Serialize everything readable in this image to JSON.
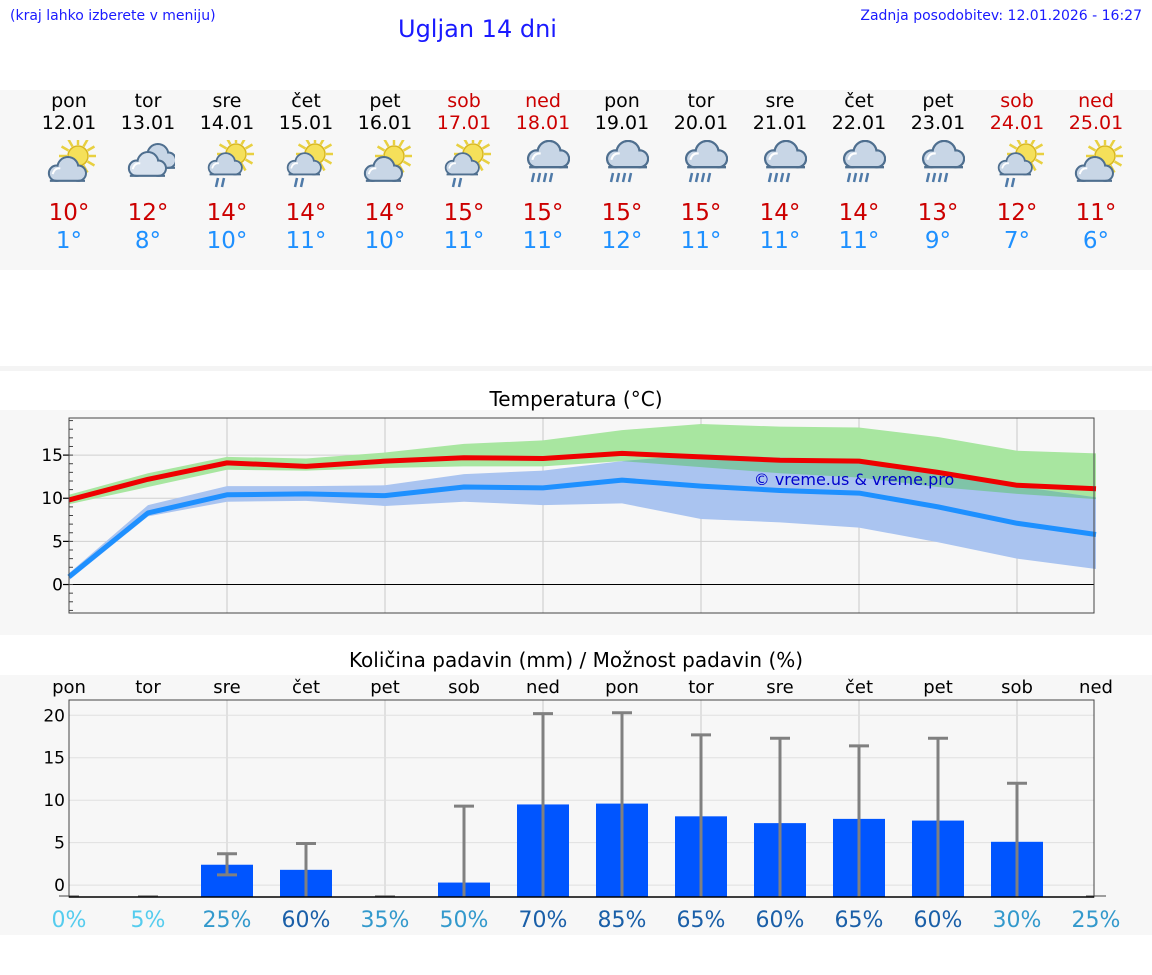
{
  "header": {
    "hint": "(kraj lahko izberete v meniju)",
    "title": "Ugljan 14 dni",
    "updated": "Zadnja posodobitev: 12.01.2026 - 16:27"
  },
  "days": [
    {
      "name": "pon",
      "date": "12.01",
      "weekend": false,
      "icon": "partly-cloudy-icon",
      "max": "10°",
      "min": "1°"
    },
    {
      "name": "tor",
      "date": "13.01",
      "weekend": false,
      "icon": "cloudy-icon",
      "max": "12°",
      "min": "8°"
    },
    {
      "name": "sre",
      "date": "14.01",
      "weekend": false,
      "icon": "sun-cloud-showers-icon",
      "max": "14°",
      "min": "10°"
    },
    {
      "name": "čet",
      "date": "15.01",
      "weekend": false,
      "icon": "sun-cloud-showers-icon",
      "max": "14°",
      "min": "11°"
    },
    {
      "name": "pet",
      "date": "16.01",
      "weekend": false,
      "icon": "partly-cloudy-icon",
      "max": "14°",
      "min": "10°"
    },
    {
      "name": "sob",
      "date": "17.01",
      "weekend": true,
      "icon": "sun-cloud-showers-icon",
      "max": "15°",
      "min": "11°"
    },
    {
      "name": "ned",
      "date": "18.01",
      "weekend": true,
      "icon": "rain-icon",
      "max": "15°",
      "min": "11°"
    },
    {
      "name": "pon",
      "date": "19.01",
      "weekend": false,
      "icon": "rain-icon",
      "max": "15°",
      "min": "12°"
    },
    {
      "name": "tor",
      "date": "20.01",
      "weekend": false,
      "icon": "rain-icon",
      "max": "15°",
      "min": "11°"
    },
    {
      "name": "sre",
      "date": "21.01",
      "weekend": false,
      "icon": "rain-icon",
      "max": "14°",
      "min": "11°"
    },
    {
      "name": "čet",
      "date": "22.01",
      "weekend": false,
      "icon": "rain-icon",
      "max": "14°",
      "min": "11°"
    },
    {
      "name": "pet",
      "date": "23.01",
      "weekend": false,
      "icon": "rain-icon",
      "max": "13°",
      "min": "9°"
    },
    {
      "name": "sob",
      "date": "24.01",
      "weekend": true,
      "icon": "sun-cloud-showers-icon",
      "max": "12°",
      "min": "7°"
    },
    {
      "name": "ned",
      "date": "25.01",
      "weekend": true,
      "icon": "partly-cloudy-icon",
      "max": "11°",
      "min": "6°"
    }
  ],
  "colors": {
    "max_line": "#ee0000",
    "min_line": "#1e90ff",
    "max_band": "#a8e6a0",
    "min_band": "#aac4f0",
    "overlap_band": "#7fc4a8",
    "bar": "#0055ff",
    "error": "#808080",
    "watermark": "#0000cc",
    "prob_light": "#55ccee",
    "prob_mid": "#3399cc",
    "prob_dark": "#1a5fa8"
  },
  "chart_data": [
    {
      "type": "line",
      "title": "Temperatura (°C)",
      "watermark": "© vreme.us & vreme.pro",
      "ylim": [
        -3.3,
        19.3
      ],
      "yticks": [
        0,
        5,
        10,
        15
      ],
      "x": [
        0,
        1,
        2,
        3,
        4,
        5,
        6,
        7,
        8,
        9,
        10,
        11,
        12,
        13
      ],
      "series": [
        {
          "name": "max",
          "values": [
            9.8,
            12.2,
            14.1,
            13.7,
            14.3,
            14.7,
            14.6,
            15.2,
            14.8,
            14.4,
            14.3,
            13.0,
            11.5,
            11.1
          ]
        },
        {
          "name": "min",
          "values": [
            0.9,
            8.3,
            10.4,
            10.5,
            10.3,
            11.3,
            11.2,
            12.1,
            11.4,
            10.9,
            10.6,
            9.0,
            7.1,
            5.8
          ]
        },
        {
          "name": "max_band_high",
          "values": [
            10.4,
            12.9,
            14.8,
            14.6,
            15.3,
            16.3,
            16.7,
            17.9,
            18.6,
            18.3,
            18.2,
            17.1,
            15.5,
            15.2
          ]
        },
        {
          "name": "max_band_low",
          "values": [
            9.3,
            11.3,
            13.3,
            13.2,
            13.5,
            13.7,
            13.7,
            14.3,
            13.6,
            12.9,
            12.4,
            11.3,
            10.5,
            9.9
          ]
        },
        {
          "name": "min_band_high",
          "values": [
            1.3,
            9.2,
            11.4,
            11.4,
            11.5,
            12.8,
            13.2,
            14.3,
            15.1,
            14.7,
            14.5,
            12.8,
            11.4,
            10.1
          ]
        },
        {
          "name": "min_band_low",
          "values": [
            0.5,
            7.9,
            9.6,
            9.7,
            9.1,
            9.6,
            9.2,
            9.4,
            7.6,
            7.2,
            6.6,
            4.9,
            3.0,
            1.8
          ]
        }
      ]
    },
    {
      "type": "bar",
      "title": "Količina padavin (mm) / Možnost padavin (%)",
      "ylim": [
        -1.4,
        21.8
      ],
      "yticks": [
        0,
        5,
        10,
        15,
        20
      ],
      "categories": [
        "pon",
        "tor",
        "sre",
        "čet",
        "pet",
        "sob",
        "ned",
        "pon",
        "tor",
        "sre",
        "čet",
        "pet",
        "sob",
        "ned"
      ],
      "values": [
        0,
        0,
        2.4,
        1.8,
        0,
        0.3,
        9.5,
        9.6,
        8.1,
        7.3,
        7.8,
        7.6,
        5.1,
        0
      ],
      "error_high": [
        0,
        0,
        3.7,
        4.9,
        0,
        9.3,
        20.2,
        20.3,
        17.7,
        17.3,
        16.4,
        17.3,
        12.0,
        0
      ],
      "error_low": [
        0,
        0,
        1.2,
        0,
        0,
        0,
        0,
        0,
        0,
        0,
        0,
        0,
        0,
        0
      ],
      "probability": [
        "0%",
        "5%",
        "25%",
        "60%",
        "35%",
        "50%",
        "70%",
        "85%",
        "65%",
        "60%",
        "65%",
        "60%",
        "30%",
        "25%"
      ]
    }
  ]
}
